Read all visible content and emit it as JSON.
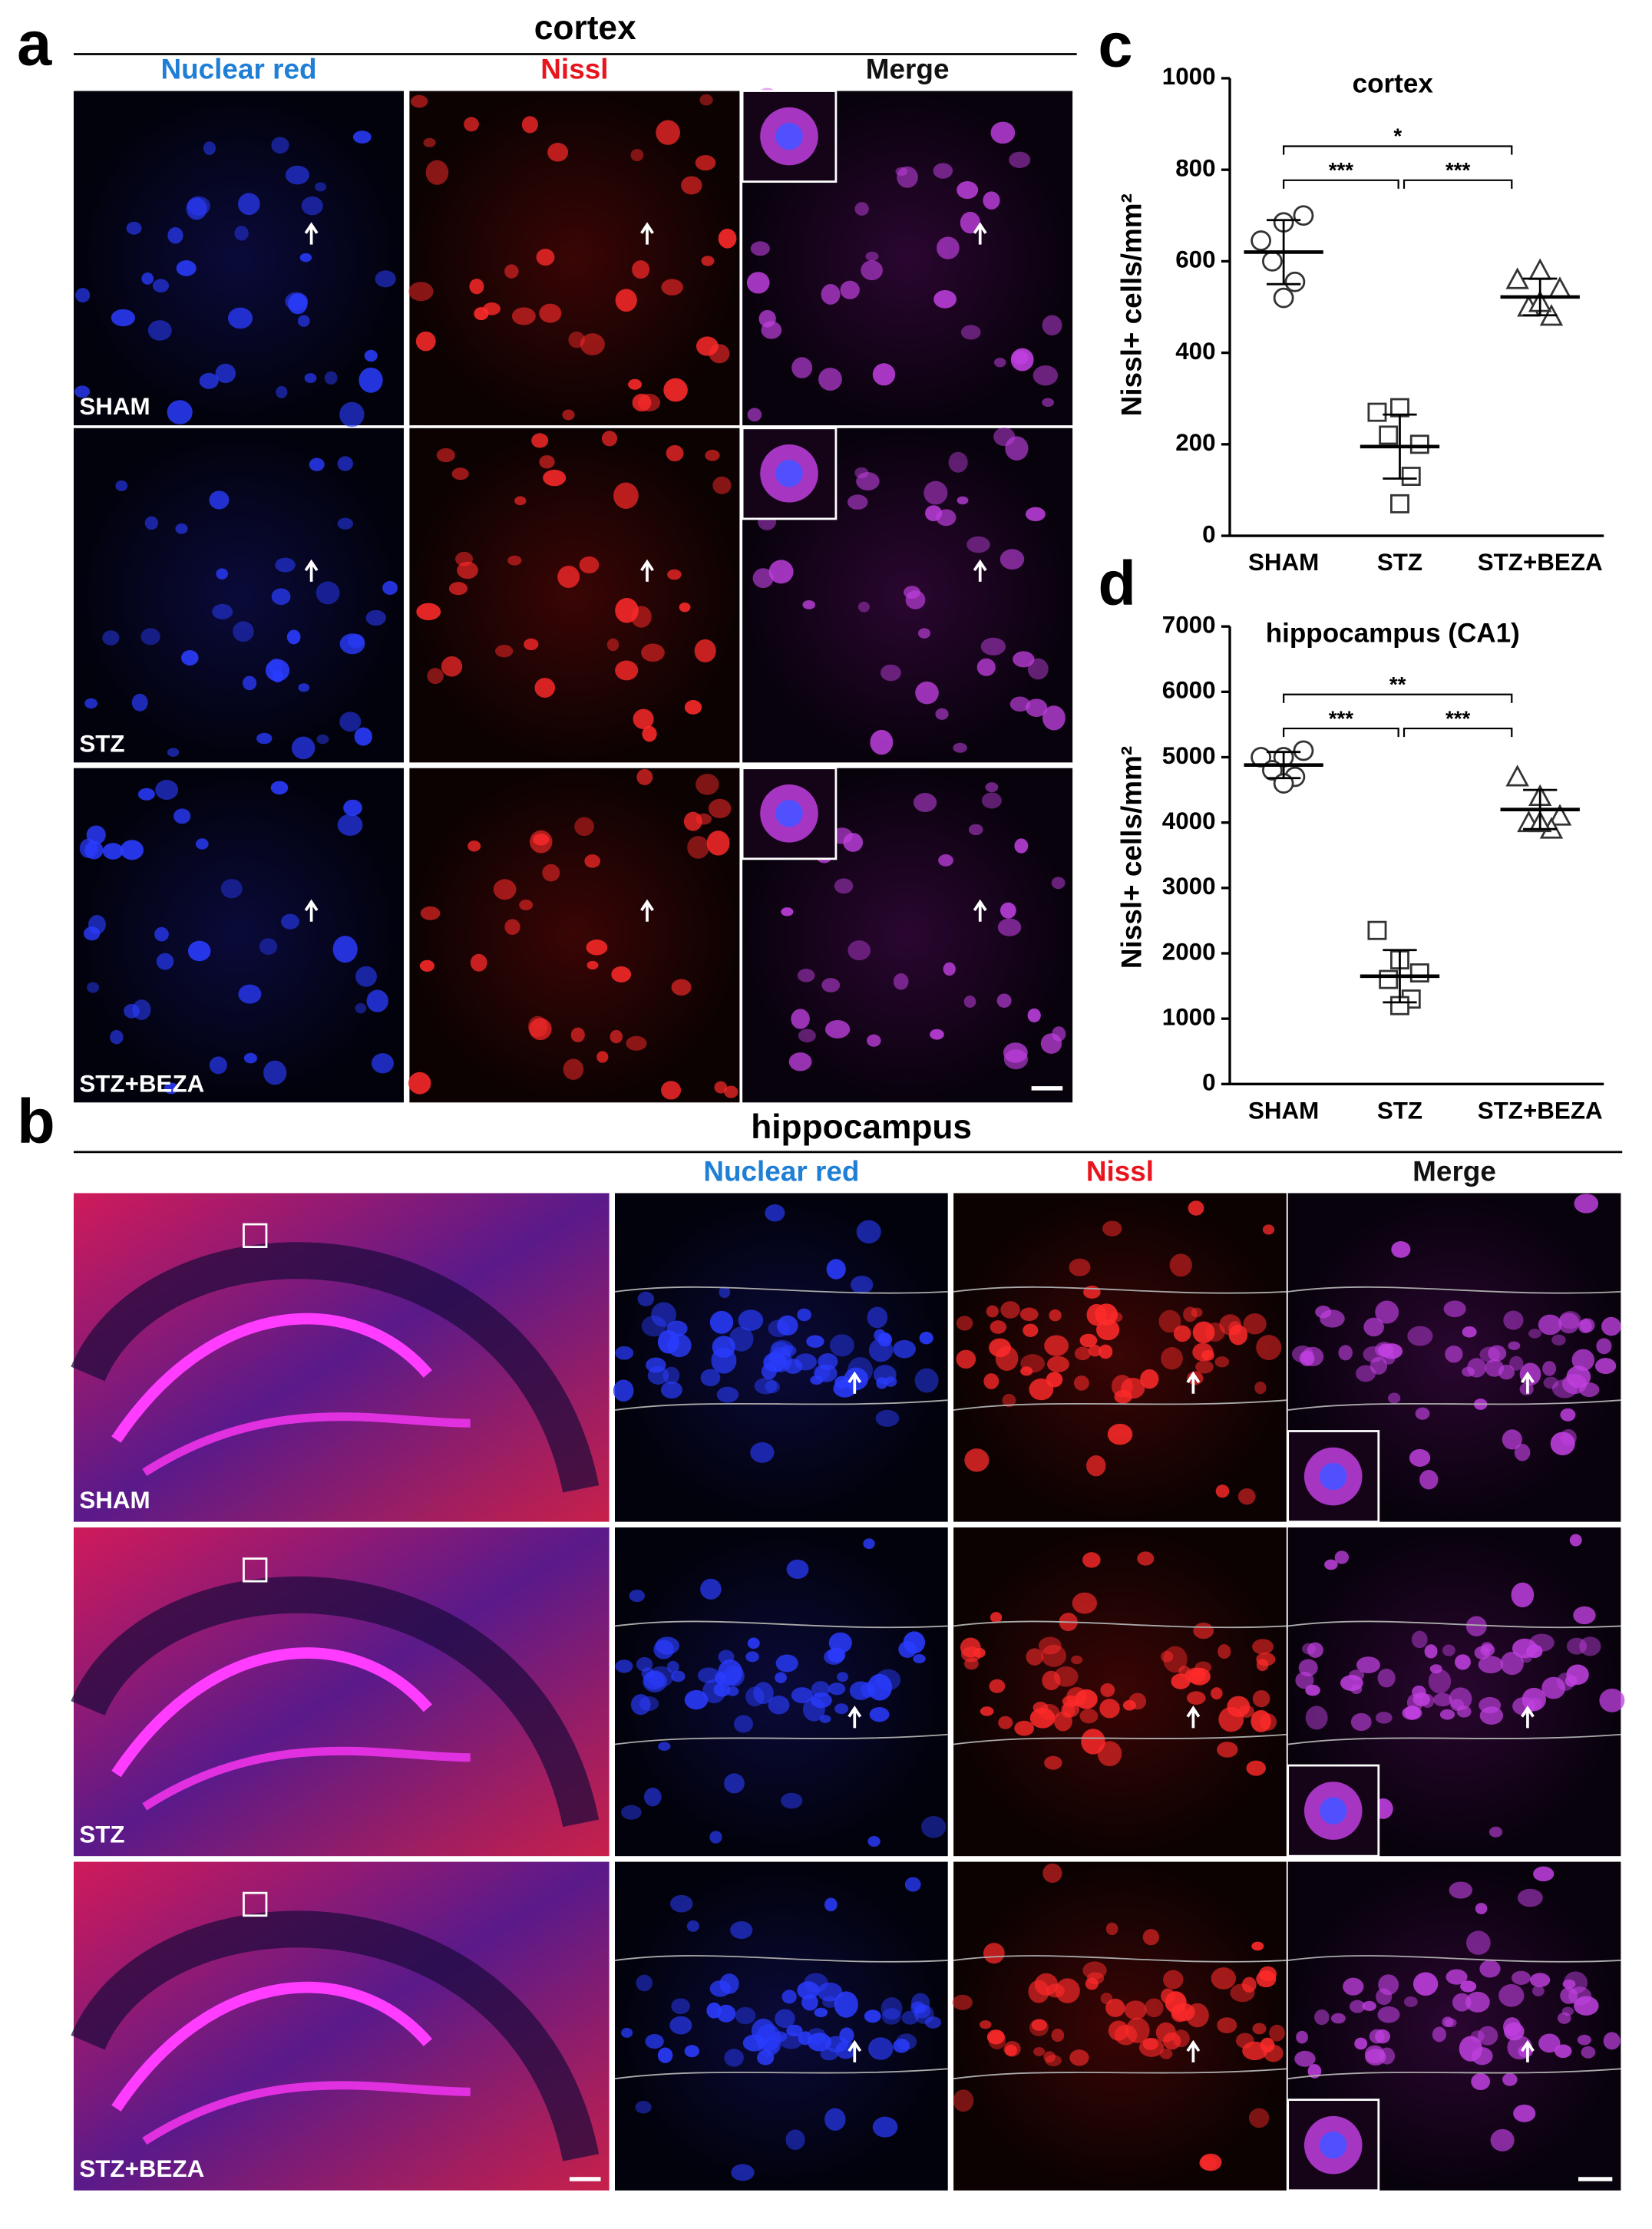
{
  "panel_a": {
    "label": "a",
    "title": "cortex",
    "columns": [
      "Nuclear red",
      "Nissl",
      "Merge"
    ],
    "column_colors": [
      "#1f7fd6",
      "#e8141e",
      "#111111"
    ],
    "rows": [
      "SHAM",
      "STZ",
      "STZ+BEZA"
    ]
  },
  "panel_b": {
    "label": "b",
    "title": "hippocampus",
    "columns": [
      "Nuclear red",
      "Nissl",
      "Merge"
    ],
    "column_colors": [
      "#1f7fd6",
      "#e8141e",
      "#111111"
    ],
    "rows": [
      "SHAM",
      "STZ",
      "STZ+BEZA"
    ]
  },
  "chart_data": [
    {
      "label": "c",
      "type": "dot",
      "title": "cortex",
      "y_label": "Nissl+ cells/mm²",
      "categories": [
        "SHAM",
        "STZ",
        "STZ+BEZA"
      ],
      "markers": [
        "circle",
        "square",
        "triangle"
      ],
      "groups": [
        [
          645,
          685,
          700,
          600,
          555,
          520
        ],
        [
          270,
          280,
          200,
          220,
          130,
          70
        ],
        [
          560,
          580,
          540,
          500,
          480,
          510
        ]
      ],
      "means": [
        620,
        195,
        522
      ],
      "sd": [
        70,
        70,
        40
      ],
      "ylim": [
        0,
        1000
      ],
      "yticks": [
        0,
        200,
        400,
        600,
        800,
        1000
      ],
      "annotations": [
        {
          "text": "***",
          "between": [
            "SHAM",
            "STZ"
          ]
        },
        {
          "text": "***",
          "between": [
            "STZ",
            "STZ+BEZA"
          ]
        },
        {
          "text": "*",
          "between": [
            "SHAM",
            "STZ+BEZA"
          ]
        }
      ]
    },
    {
      "label": "d",
      "type": "dot",
      "title": "hippocampus (CA1)",
      "y_label": "Nissl+ cells/mm²",
      "categories": [
        "SHAM",
        "STZ",
        "STZ+BEZA"
      ],
      "markers": [
        "circle",
        "square",
        "triangle"
      ],
      "groups": [
        [
          5000,
          5000,
          5100,
          4800,
          4700,
          4600
        ],
        [
          2350,
          1900,
          1700,
          1600,
          1300,
          1200
        ],
        [
          4700,
          4400,
          4100,
          4000,
          3900,
          4000
        ]
      ],
      "means": [
        4880,
        1650,
        4200
      ],
      "sd": [
        200,
        400,
        300
      ],
      "ylim": [
        0,
        7000
      ],
      "yticks": [
        0,
        1000,
        2000,
        3000,
        4000,
        5000,
        6000,
        7000
      ],
      "annotations": [
        {
          "text": "***",
          "between": [
            "SHAM",
            "STZ"
          ]
        },
        {
          "text": "***",
          "between": [
            "STZ",
            "STZ+BEZA"
          ]
        },
        {
          "text": "**",
          "between": [
            "SHAM",
            "STZ+BEZA"
          ]
        }
      ]
    }
  ]
}
